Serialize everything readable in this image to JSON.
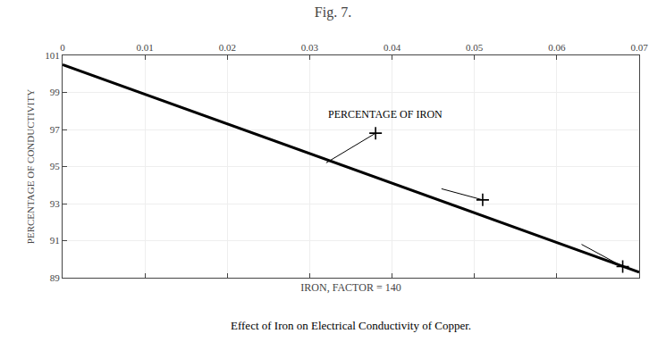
{
  "chart_data": {
    "type": "line",
    "title": "Fig. 7.",
    "xlabel": "IRON, FACTOR = 140",
    "ylabel": "PERCENTAGE OF CONDUCTIVITY",
    "annotations": [
      {
        "text": "PERCENTAGE OF IRON",
        "x": 0.032,
        "y": 97.8
      },
      {
        "text": "Effect of Iron on Electrical Conductivity of Copper."
      }
    ],
    "series": [
      {
        "type": "line",
        "x": [
          0.0,
          0.07
        ],
        "values": [
          100.5,
          89.3
        ],
        "color": "#000000"
      },
      {
        "type": "line",
        "x": [
          0.038,
          0.032,
          null,
          0.051,
          0.046,
          null,
          0.068,
          0.063
        ],
        "values": [
          96.8,
          95.2,
          null,
          93.2,
          93.8,
          null,
          89.6,
          90.8
        ],
        "color": "#000000"
      },
      {
        "type": "scatter",
        "x": [
          0.038,
          0.051,
          0.068
        ],
        "values": [
          96.8,
          93.2,
          89.6
        ],
        "marker": "plus",
        "color": "#000000"
      }
    ],
    "xlim": [
      0.0,
      0.07
    ],
    "xticks": [
      0,
      0.01,
      0.02,
      0.03,
      0.04,
      0.05,
      0.06,
      0.07
    ],
    "ylim": [
      89,
      101
    ],
    "yticks": [
      89,
      91,
      93,
      95,
      97,
      99,
      101
    ],
    "grid": true
  }
}
